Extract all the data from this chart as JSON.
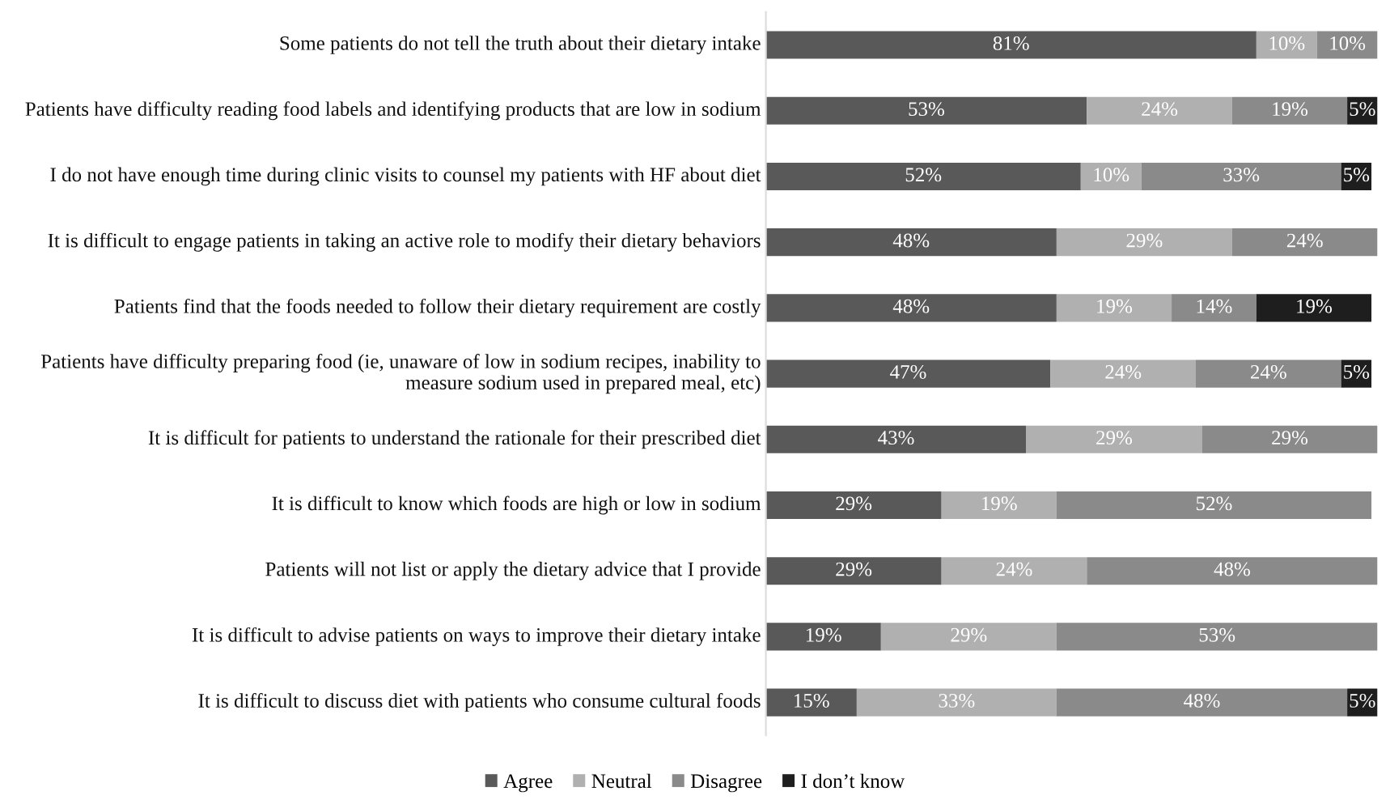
{
  "chart_data": {
    "type": "bar",
    "orientation": "horizontal",
    "stacked": true,
    "legend": "bottom",
    "categories": [
      "Some patients do not tell the truth about their dietary intake",
      "Patients have difficulty reading food labels and identifying products that are low in sodium",
      "I do not have enough time during clinic visits to counsel my patients with HF about diet",
      "It is difficult to engage patients in taking an active role to modify their dietary behaviors",
      "Patients find that the foods needed to follow their dietary requirement are costly",
      "Patients have difficulty preparing food (ie, unaware of low in sodium recipes, inability to measure sodium used in prepared meal, etc)",
      "It is difficult for patients to understand the rationale for their prescribed diet",
      "It is difficult to know which foods are high or low in sodium",
      "Patients will not list or apply the dietary advice that I provide",
      "It is difficult to advise patients on ways to improve their dietary intake",
      "It is difficult to discuss diet with patients who consume cultural foods"
    ],
    "series": [
      {
        "name": "Agree",
        "color": "#595959",
        "values": [
          81,
          53,
          52,
          48,
          48,
          47,
          43,
          29,
          29,
          19,
          15
        ],
        "value_labels": [
          "81%",
          "53%",
          "52%",
          "48%",
          "48%",
          "47%",
          "43%",
          "29%",
          "29%",
          "19%",
          "15%"
        ]
      },
      {
        "name": "Neutral",
        "color": "#b0b0b0",
        "values": [
          10,
          24,
          10,
          29,
          19,
          24,
          29,
          19,
          24,
          29,
          33
        ],
        "value_labels": [
          "10%",
          "24%",
          "10%",
          "29%",
          "19%",
          "24%",
          "29%",
          "19%",
          "24%",
          "29%",
          "33%"
        ]
      },
      {
        "name": "Disagree",
        "color": "#8a8a8a",
        "values": [
          10,
          19,
          33,
          24,
          14,
          24,
          29,
          52,
          48,
          53,
          48
        ],
        "value_labels": [
          "10%",
          "19%",
          "33%",
          "24%",
          "14%",
          "24%",
          "29%",
          "52%",
          "48%",
          "53%",
          "48%"
        ]
      },
      {
        "name": "I don’t know",
        "color": "#1e1e1e",
        "values": [
          null,
          5,
          5,
          null,
          19,
          5,
          null,
          null,
          null,
          null,
          5
        ],
        "value_labels": [
          null,
          "5%",
          "5%",
          null,
          "19%",
          "5%",
          null,
          null,
          null,
          null,
          "5%"
        ]
      }
    ]
  }
}
